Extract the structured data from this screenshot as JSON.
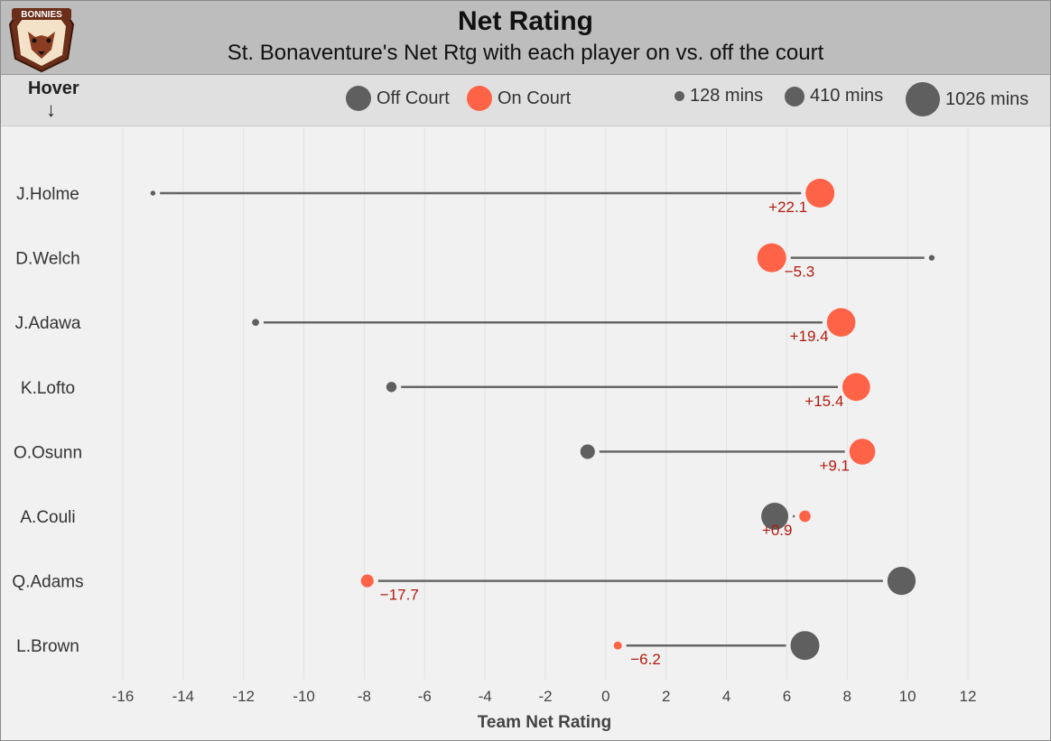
{
  "header": {
    "title": "Net Rating",
    "subtitle": "St. Bonaventure's Net Rtg with each player on vs. off the court",
    "logo_text": "BONNIES"
  },
  "legend": {
    "hover_label": "Hover",
    "hover_arrow": "↓",
    "off_court_label": "Off Court",
    "on_court_label": "On Court",
    "size_small_label": "128 mins",
    "size_medium_label": "410 mins",
    "size_large_label": "1026 mins"
  },
  "colors": {
    "off_court": "#5f5f5f",
    "on_court": "#ff6347",
    "diff_text": "#b31b0f",
    "header_bg": "#bdbdbd",
    "plot_bg": "#f1f1f1"
  },
  "chart_data": {
    "type": "dumbbell",
    "xlabel": "Team Net Rating",
    "xlim": [
      -17,
      12.4
    ],
    "xticks": [
      -16,
      -14,
      -12,
      -10,
      -8,
      -6,
      -4,
      -2,
      0,
      2,
      4,
      6,
      8,
      10,
      12
    ],
    "grid": "vertical",
    "players": [
      {
        "name": "J.Holme",
        "off_court": -15.0,
        "on_court": 7.1,
        "diff_label": "+22.1",
        "off_minutes": 30,
        "on_minutes": 1026
      },
      {
        "name": "D.Welch",
        "off_court": 10.8,
        "on_court": 5.5,
        "diff_label": "−5.3",
        "off_minutes": 40,
        "on_minutes": 1026
      },
      {
        "name": "J.Adawa",
        "off_court": -11.6,
        "on_court": 7.8,
        "diff_label": "+19.4",
        "off_minutes": 60,
        "on_minutes": 1000
      },
      {
        "name": "K.Lofto",
        "off_court": -7.1,
        "on_court": 8.3,
        "diff_label": "+15.4",
        "off_minutes": 128,
        "on_minutes": 950
      },
      {
        "name": "O.Osunn",
        "off_court": -0.6,
        "on_court": 8.5,
        "diff_label": "+9.1",
        "off_minutes": 260,
        "on_minutes": 820
      },
      {
        "name": "A.Couli",
        "off_court": 5.6,
        "on_court": 6.6,
        "diff_label": "+0.9",
        "off_minutes": 900,
        "on_minutes": 160
      },
      {
        "name": "Q.Adams",
        "off_court": 9.8,
        "on_court": -7.9,
        "diff_label": "−17.7",
        "off_minutes": 980,
        "on_minutes": 200
      },
      {
        "name": "L.Brown",
        "off_court": 6.6,
        "on_court": 0.4,
        "diff_label": "−6.2",
        "off_minutes": 1026,
        "on_minutes": 80
      }
    ]
  }
}
